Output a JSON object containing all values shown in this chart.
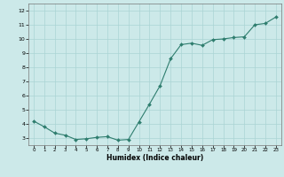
{
  "x_vals": [
    0,
    1,
    2,
    3,
    4,
    5,
    6,
    7,
    8,
    9,
    10,
    11,
    12,
    13,
    14,
    15,
    16,
    17,
    18,
    19,
    20,
    21,
    22,
    23
  ],
  "y_vals": [
    4.2,
    3.8,
    3.35,
    3.2,
    2.9,
    2.95,
    3.05,
    3.1,
    2.85,
    2.9,
    4.15,
    5.4,
    6.7,
    8.6,
    9.6,
    9.7,
    9.55,
    9.95,
    10.0,
    10.1,
    10.15,
    11.0,
    11.1,
    11.55
  ],
  "xlabel": "Humidex (Indice chaleur)",
  "xlim": [
    -0.5,
    23.5
  ],
  "ylim": [
    2.5,
    12.5
  ],
  "yticks": [
    3,
    4,
    5,
    6,
    7,
    8,
    9,
    10,
    11,
    12
  ],
  "xticks": [
    0,
    1,
    2,
    3,
    4,
    5,
    6,
    7,
    8,
    9,
    10,
    11,
    12,
    13,
    14,
    15,
    16,
    17,
    18,
    19,
    20,
    21,
    22,
    23
  ],
  "line_color": "#2e7d6e",
  "bg_color": "#cce9e9",
  "grid_color": "#aad4d4"
}
